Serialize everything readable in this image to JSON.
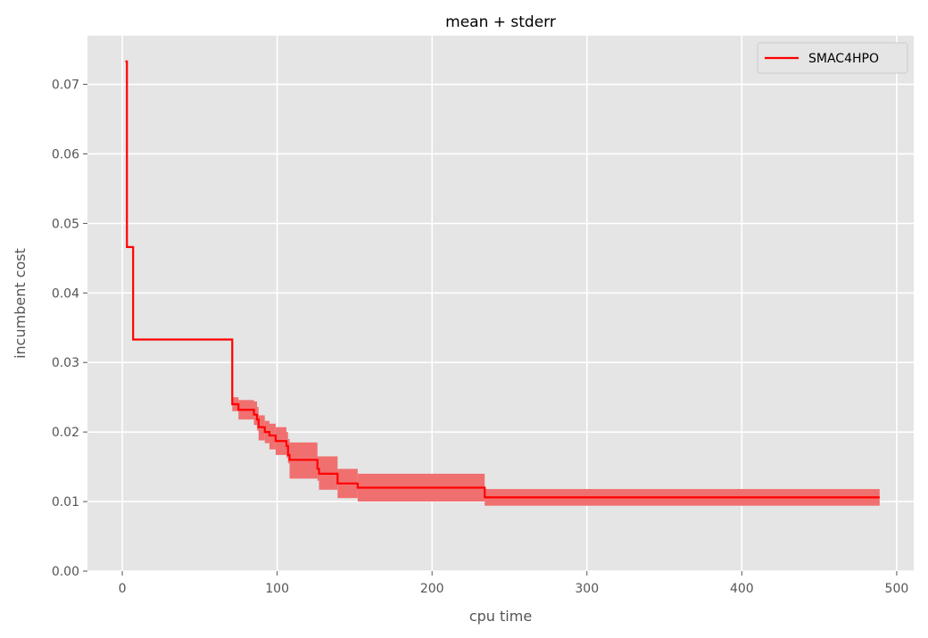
{
  "chart_data": {
    "type": "line",
    "title": "mean + stderr",
    "xlabel": "cpu time",
    "ylabel": "incumbent cost",
    "xlim": [
      -22.5,
      511
    ],
    "ylim": [
      0,
      0.077
    ],
    "xticks": [
      0,
      100,
      200,
      300,
      400,
      500
    ],
    "yticks": [
      0.0,
      0.01,
      0.02,
      0.03,
      0.04,
      0.05,
      0.06,
      0.07
    ],
    "ytick_labels": [
      "0.00",
      "0.01",
      "0.02",
      "0.03",
      "0.04",
      "0.05",
      "0.06",
      "0.07"
    ],
    "xtick_labels": [
      "0",
      "100",
      "200",
      "300",
      "400",
      "500"
    ],
    "grid": true,
    "legend_position": "top-right",
    "colors": {
      "background": "#e5e5e5",
      "grid": "#ffffff",
      "line": "#ff0000",
      "band": "#f07070"
    },
    "series": [
      {
        "name": "SMAC4HPO",
        "step": true,
        "points": [
          {
            "x": 2,
            "y": 0.0733,
            "lo": 0.0733,
            "hi": 0.0733
          },
          {
            "x": 3,
            "y": 0.0466,
            "lo": 0.0466,
            "hi": 0.0466
          },
          {
            "x": 7,
            "y": 0.0333,
            "lo": 0.0333,
            "hi": 0.0333
          },
          {
            "x": 71,
            "y": 0.024,
            "lo": 0.023,
            "hi": 0.025
          },
          {
            "x": 75,
            "y": 0.0232,
            "lo": 0.0218,
            "hi": 0.0246
          },
          {
            "x": 85,
            "y": 0.0225,
            "lo": 0.021,
            "hi": 0.0244
          },
          {
            "x": 87,
            "y": 0.0218,
            "lo": 0.0202,
            "hi": 0.0236
          },
          {
            "x": 88,
            "y": 0.0207,
            "lo": 0.0188,
            "hi": 0.0224
          },
          {
            "x": 92,
            "y": 0.02,
            "lo": 0.0184,
            "hi": 0.0216
          },
          {
            "x": 95,
            "y": 0.0195,
            "lo": 0.0175,
            "hi": 0.0212
          },
          {
            "x": 99,
            "y": 0.0187,
            "lo": 0.0167,
            "hi": 0.0207
          },
          {
            "x": 106,
            "y": 0.018,
            "lo": 0.0163,
            "hi": 0.02
          },
          {
            "x": 107,
            "y": 0.0167,
            "lo": 0.0155,
            "hi": 0.019
          },
          {
            "x": 108,
            "y": 0.016,
            "lo": 0.0133,
            "hi": 0.0185
          },
          {
            "x": 126,
            "y": 0.0147,
            "lo": 0.013,
            "hi": 0.0165
          },
          {
            "x": 127,
            "y": 0.014,
            "lo": 0.0117,
            "hi": 0.0165
          },
          {
            "x": 139,
            "y": 0.0126,
            "lo": 0.0105,
            "hi": 0.0147
          },
          {
            "x": 152,
            "y": 0.012,
            "lo": 0.01,
            "hi": 0.014
          },
          {
            "x": 234,
            "y": 0.0106,
            "lo": 0.0094,
            "hi": 0.0118
          }
        ],
        "x_end": 489
      }
    ]
  }
}
